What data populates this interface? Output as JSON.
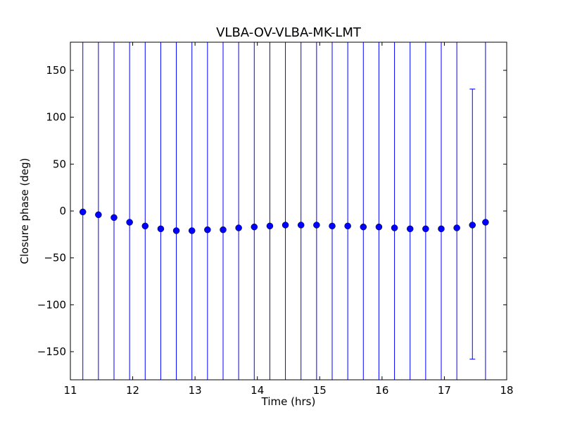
{
  "chart_data": {
    "type": "scatter",
    "title": "VLBA-OV-VLBA-MK-LMT",
    "xlabel": "Time (hrs)",
    "ylabel": "Closure phase (deg)",
    "xlim": [
      11,
      18
    ],
    "ylim": [
      -180,
      180
    ],
    "xticks": [
      11,
      12,
      13,
      14,
      15,
      16,
      17,
      18
    ],
    "yticks": [
      150,
      100,
      50,
      0,
      -50,
      -100,
      -150
    ],
    "xtick_labels": [
      "11",
      "12",
      "13",
      "14",
      "15",
      "16",
      "17",
      "18"
    ],
    "ytick_labels": [
      "150",
      "100",
      "50",
      "0",
      "−50",
      "−100",
      "−150"
    ],
    "grid": false,
    "series": [
      {
        "color": "#0000ff",
        "marker": "circle",
        "points": [
          {
            "x": 11.2,
            "y": -1,
            "err_low": null,
            "err_high": null
          },
          {
            "x": 11.45,
            "y": -4,
            "err_low": null,
            "err_high": null
          },
          {
            "x": 11.7,
            "y": -7,
            "err_low": null,
            "err_high": null
          },
          {
            "x": 11.95,
            "y": -12,
            "err_low": null,
            "err_high": null
          },
          {
            "x": 12.2,
            "y": -16,
            "err_low": null,
            "err_high": null
          },
          {
            "x": 12.45,
            "y": -19,
            "err_low": null,
            "err_high": null
          },
          {
            "x": 12.7,
            "y": -21,
            "err_low": null,
            "err_high": null
          },
          {
            "x": 12.95,
            "y": -21,
            "err_low": null,
            "err_high": null
          },
          {
            "x": 13.2,
            "y": -20,
            "err_low": null,
            "err_high": null
          },
          {
            "x": 13.45,
            "y": -20,
            "err_low": null,
            "err_high": null
          },
          {
            "x": 13.7,
            "y": -18,
            "err_low": null,
            "err_high": null
          },
          {
            "x": 13.95,
            "y": -17,
            "err_low": null,
            "err_high": null
          },
          {
            "x": 14.2,
            "y": -16,
            "err_low": null,
            "err_high": null
          },
          {
            "x": 14.45,
            "y": -15,
            "err_low": null,
            "err_high": null
          },
          {
            "x": 14.7,
            "y": -15,
            "err_low": null,
            "err_high": null
          },
          {
            "x": 14.95,
            "y": -15,
            "err_low": null,
            "err_high": null
          },
          {
            "x": 15.2,
            "y": -16,
            "err_low": null,
            "err_high": null
          },
          {
            "x": 15.45,
            "y": -16,
            "err_low": null,
            "err_high": null
          },
          {
            "x": 15.7,
            "y": -17,
            "err_low": null,
            "err_high": null
          },
          {
            "x": 15.95,
            "y": -17,
            "err_low": null,
            "err_high": null
          },
          {
            "x": 16.2,
            "y": -18,
            "err_low": null,
            "err_high": null
          },
          {
            "x": 16.45,
            "y": -19,
            "err_low": null,
            "err_high": null
          },
          {
            "x": 16.7,
            "y": -19,
            "err_low": null,
            "err_high": null
          },
          {
            "x": 16.95,
            "y": -19,
            "err_low": null,
            "err_high": null
          },
          {
            "x": 17.2,
            "y": -18,
            "err_low": null,
            "err_high": null
          },
          {
            "x": 17.45,
            "y": -15,
            "err_low": -158,
            "err_high": 130
          },
          {
            "x": 17.66,
            "y": -12,
            "err_low": null,
            "err_high": null
          }
        ]
      }
    ]
  }
}
